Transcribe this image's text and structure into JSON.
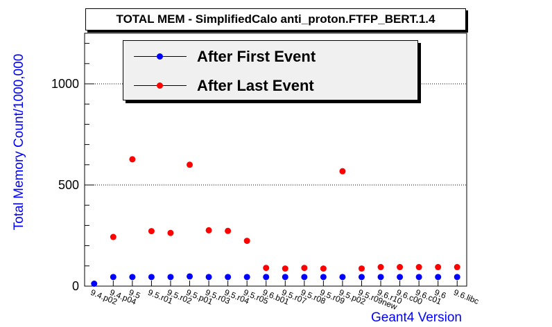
{
  "chart_data": {
    "type": "scatter",
    "title": "TOTAL MEM - SimplifiedCalo anti_proton.FTFP_BERT.1.4",
    "xlabel": "Geant4 Version",
    "ylabel": "Total Memory Count/1000,000",
    "ylim": [
      0,
      1250
    ],
    "yticks": [
      0,
      500,
      1000
    ],
    "grid": true,
    "legend_position": "top",
    "categories": [
      "9.4.p02",
      "9.4.p04",
      "9.5",
      "9.5.r01",
      "9.5.r02",
      "9.5.p01",
      "9.5.r03",
      "9.5.r04",
      "9.5.r05",
      "9.6.b01",
      "9.5.r07",
      "9.5.r08",
      "9.5.r09",
      "9.5.p02",
      "9.5.r09new",
      "9.6.r10",
      "9.6.c00",
      "9.6.c01",
      "9.6",
      "9.6.libc"
    ],
    "series": [
      {
        "name": "After First Event",
        "color": "#0000ff",
        "values": [
          12,
          45,
          45,
          45,
          45,
          48,
          45,
          45,
          45,
          45,
          45,
          45,
          45,
          45,
          45,
          45,
          45,
          45,
          45,
          45
        ]
      },
      {
        "name": "After Last Event",
        "color": "#ff0000",
        "values": [
          null,
          243,
          627,
          272,
          263,
          600,
          276,
          273,
          224,
          90,
          87,
          90,
          87,
          568,
          87,
          94,
          94,
          94,
          94,
          94
        ]
      }
    ]
  }
}
